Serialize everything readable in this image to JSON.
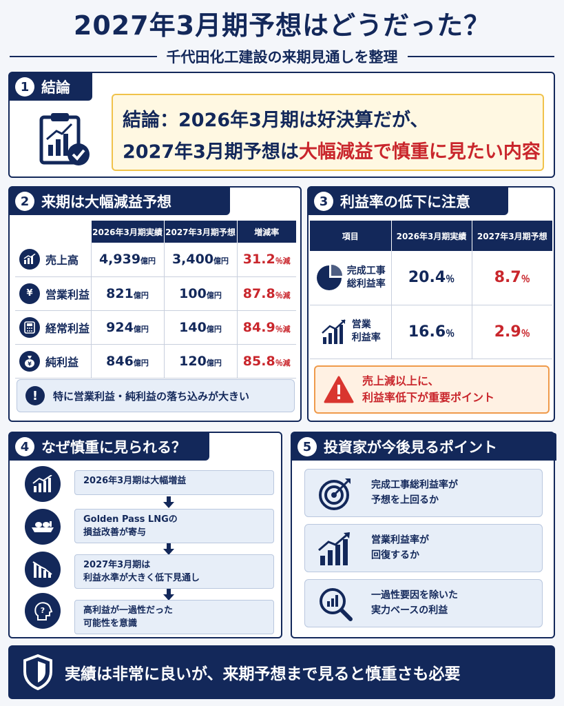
{
  "header": {
    "title": "2027年3月期予想はどうだった？",
    "subtitle": "千代田化工建設の来期見通しを整理"
  },
  "section1": {
    "num": "1",
    "title": "結論",
    "line1": "結論：2026年3月期は好決算だが、",
    "line2_prefix": "2027年3月期予想は",
    "line2_highlight": "大幅減益で慎重に見たい内容"
  },
  "section2": {
    "num": "2",
    "title": "来期は大幅減益予想",
    "columns": [
      "2026年3月期実績",
      "2027年3月期予想",
      "増減率"
    ],
    "rows": [
      {
        "label": "売上高",
        "icon": "bar-chart-icon",
        "actual": "4,939",
        "forecast": "3,400",
        "change": "31.2",
        "unit": "億円",
        "pct_unit": "％減"
      },
      {
        "label": "営業利益",
        "icon": "yen-coin-icon",
        "actual": "821",
        "forecast": "100",
        "change": "87.8",
        "unit": "億円",
        "pct_unit": "％減"
      },
      {
        "label": "経常利益",
        "icon": "calculator-icon",
        "actual": "924",
        "forecast": "140",
        "change": "84.9",
        "unit": "億円",
        "pct_unit": "％減"
      },
      {
        "label": "純利益",
        "icon": "money-bag-icon",
        "actual": "846",
        "forecast": "120",
        "change": "85.8",
        "unit": "億円",
        "pct_unit": "％減"
      }
    ],
    "note": "特に営業利益・純利益の落ち込みが大きい"
  },
  "section3": {
    "num": "3",
    "title": "利益率の低下に注意",
    "columns": [
      "項目",
      "2026年3月期実績",
      "2027年3月期予想"
    ],
    "rows": [
      {
        "label1": "完成工事",
        "label2": "総利益率",
        "icon": "pie-chart-icon",
        "actual": "20.4",
        "forecast": "8.7",
        "unit": "％"
      },
      {
        "label1": "営業",
        "label2": "利益率",
        "icon": "growth-chart-icon",
        "actual": "16.6",
        "forecast": "2.9",
        "unit": "％"
      }
    ],
    "warning1": "売上減以上に、",
    "warning2": "利益率低下が重要ポイント"
  },
  "section4": {
    "num": "4",
    "title": "なぜ慎重に見られる？",
    "steps": [
      {
        "line1": "2026年3月期は大幅増益",
        "line2": ""
      },
      {
        "line1": "Golden Pass LNGの",
        "line2": "損益改善が寄与"
      },
      {
        "line1": "2027年3月期は",
        "line2": "利益水準が大きく低下見通し"
      },
      {
        "line1": "高利益が一過性だった",
        "line2": "可能性を意識"
      }
    ]
  },
  "section5": {
    "num": "5",
    "title": "投資家が今後見るポイント",
    "points": [
      {
        "line1": "完成工事総利益率が",
        "line2": "予想を上回るか"
      },
      {
        "line1": "営業利益率が",
        "line2": "回復するか"
      },
      {
        "line1": "一過性要因を除いた",
        "line2": "実力ベースの利益"
      }
    ]
  },
  "footer": {
    "text": "実績は非常に良いが、来期予想まで見ると慎重さも必要"
  },
  "colors": {
    "navy": "#13285a",
    "red": "#c9262c",
    "accent_yellow": "#f0c24a",
    "accent_orange": "#ef9a4a"
  }
}
